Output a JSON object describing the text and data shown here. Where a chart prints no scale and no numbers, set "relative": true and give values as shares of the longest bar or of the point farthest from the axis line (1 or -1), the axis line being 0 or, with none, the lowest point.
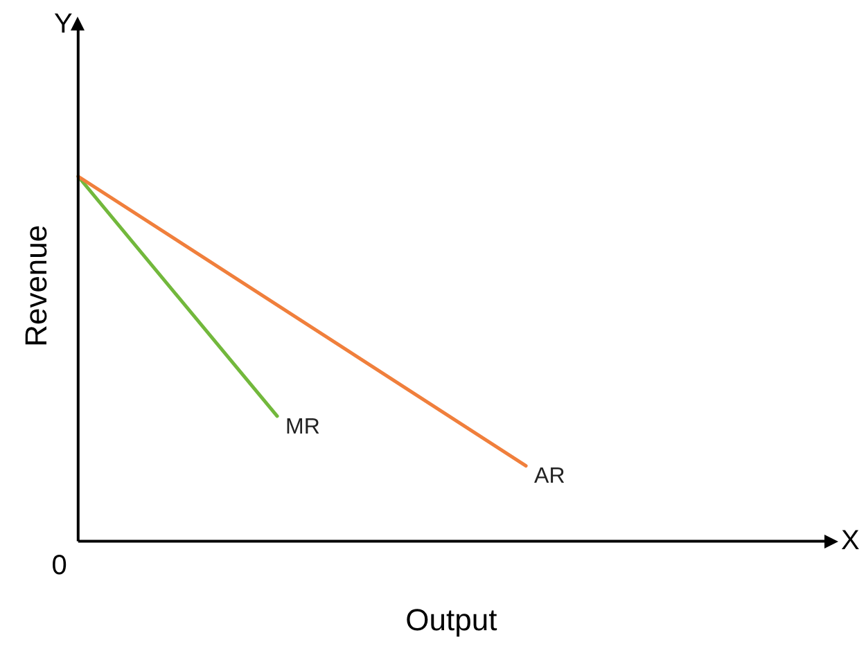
{
  "chart_data": {
    "type": "line",
    "relative": true,
    "xlabel": "Output",
    "ylabel": "Revenue",
    "grid": false,
    "legend": false,
    "marker": "none",
    "annotations": [
      "Y",
      "X",
      "0"
    ],
    "categories": [
      null,
      null,
      null,
      null,
      null,
      null,
      null,
      null,
      null,
      null,
      null,
      null,
      null,
      null,
      null,
      null
    ],
    "series": [
      {
        "name": "AR",
        "color": "#f07f3c",
        "values": [
          1,
          null,
          null,
          null,
          null,
          null,
          null,
          null,
          null,
          0.207,
          null,
          null,
          null,
          null,
          null,
          null
        ]
      },
      {
        "name": "MR",
        "color": "#72b83c",
        "values": [
          1,
          null,
          null,
          null,
          0.343,
          null,
          null,
          null,
          null,
          null,
          null,
          null,
          null,
          null,
          null,
          null
        ]
      }
    ]
  }
}
